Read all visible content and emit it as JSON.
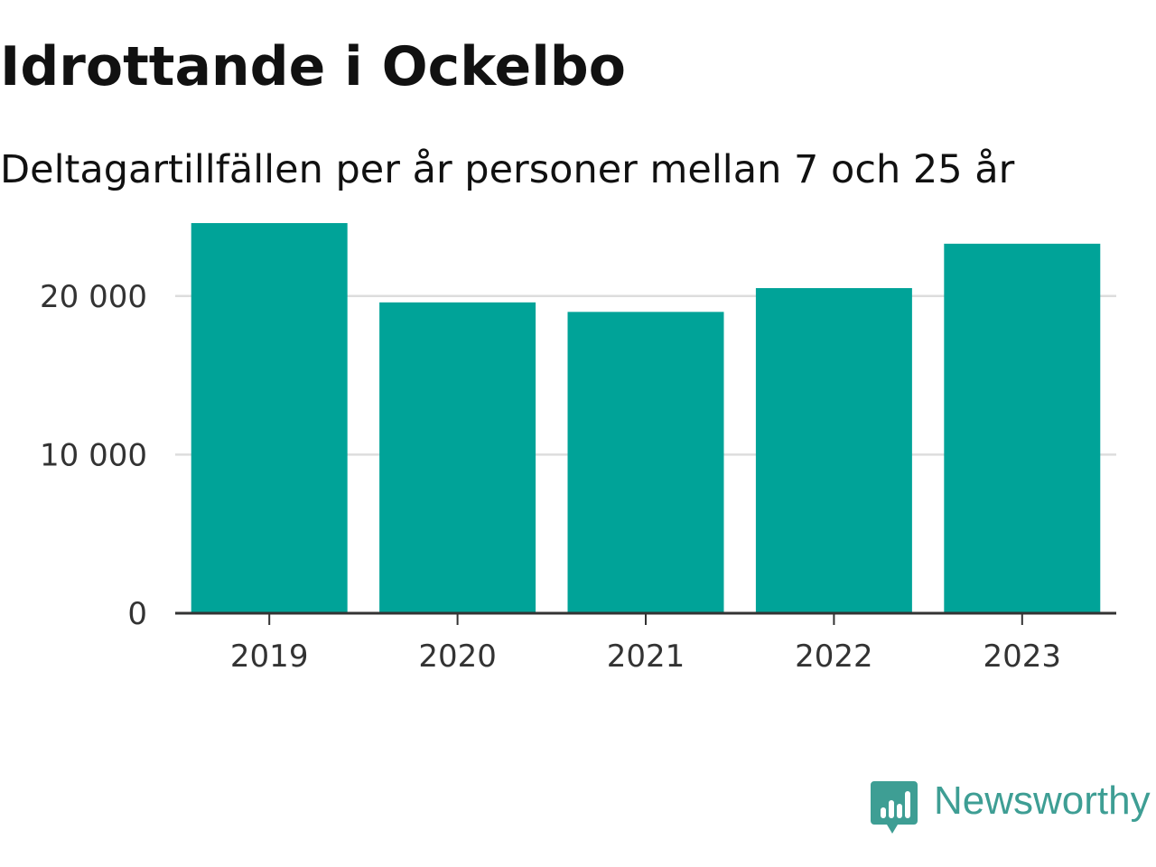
{
  "title": "Idrottande i Ockelbo",
  "subtitle": "Deltagartillfällen per år personer mellan 7 och 25 år",
  "brand": {
    "name": "Newsworthy",
    "color": "#3e9e94",
    "icon": "newsworthy-logo-icon"
  },
  "colors": {
    "bar": "#00a398",
    "grid": "#dddddd",
    "axis": "#333333"
  },
  "chart_data": {
    "type": "bar",
    "categories": [
      "2019",
      "2020",
      "2021",
      "2022",
      "2023"
    ],
    "values": [
      24600,
      19600,
      19000,
      20500,
      23300
    ],
    "ylim": [
      0,
      25000
    ],
    "yticks": [
      0,
      10000,
      20000
    ],
    "ytick_labels": [
      "0",
      "10 000",
      "20 000"
    ],
    "grid": true,
    "xlabel": "",
    "ylabel": ""
  }
}
